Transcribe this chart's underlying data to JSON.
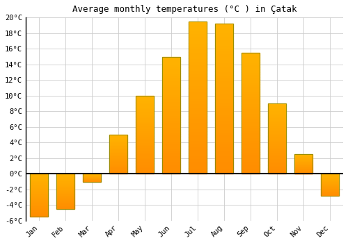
{
  "title": "Average monthly temperatures (°C ) in Çatak",
  "months": [
    "Jan",
    "Feb",
    "Mar",
    "Apr",
    "May",
    "Jun",
    "Jul",
    "Aug",
    "Sep",
    "Oct",
    "Nov",
    "Dec"
  ],
  "temperatures": [
    -5.5,
    -4.5,
    -1.0,
    5.0,
    10.0,
    15.0,
    19.5,
    19.2,
    15.5,
    9.0,
    2.5,
    -2.8
  ],
  "bar_color_top": "#FFB300",
  "bar_color_bottom": "#FF8C00",
  "bar_edge_color": "#888800",
  "background_color": "#ffffff",
  "plot_bg_color": "#ffffff",
  "grid_color": "#cccccc",
  "ylim": [
    -6,
    20
  ],
  "yticks": [
    -6,
    -4,
    -2,
    0,
    2,
    4,
    6,
    8,
    10,
    12,
    14,
    16,
    18,
    20
  ],
  "title_fontsize": 9,
  "tick_fontsize": 7.5
}
